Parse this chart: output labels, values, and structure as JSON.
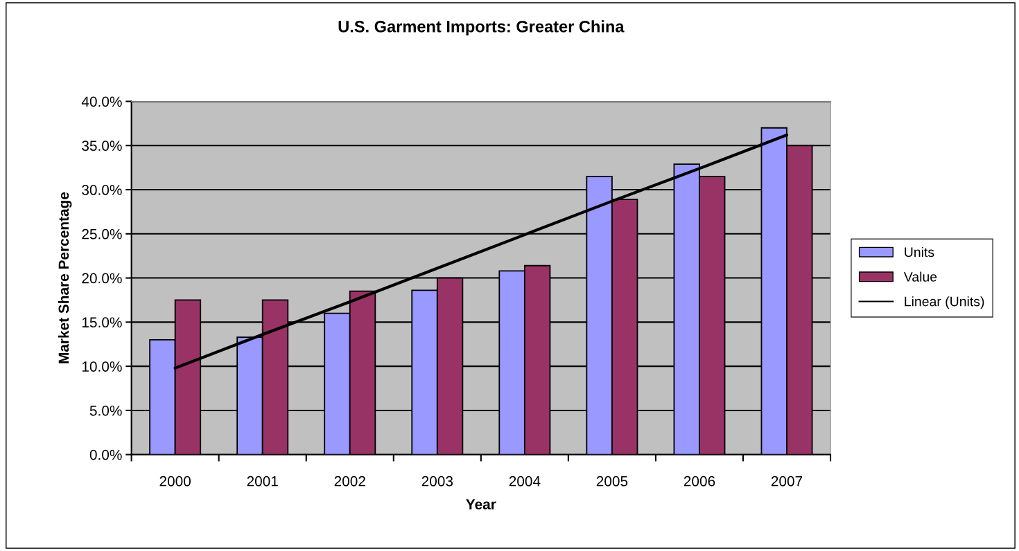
{
  "chart_data": {
    "type": "bar",
    "title": "U.S. Garment Imports: Greater China",
    "xlabel": "Year",
    "ylabel": "Market Share Percentage",
    "categories": [
      "2000",
      "2001",
      "2002",
      "2003",
      "2004",
      "2005",
      "2006",
      "2007"
    ],
    "series": [
      {
        "name": "Units",
        "color": "#9999ff",
        "values": [
          13.0,
          13.3,
          16.0,
          18.6,
          20.8,
          31.5,
          32.9,
          37.0
        ]
      },
      {
        "name": "Value",
        "color": "#993366",
        "values": [
          17.5,
          17.5,
          18.5,
          20.0,
          21.4,
          28.9,
          31.5,
          35.0
        ]
      },
      {
        "name": "Linear (Units)",
        "type": "line",
        "color": "#000000",
        "values": [
          9.8,
          13.6,
          17.3,
          21.1,
          24.9,
          28.7,
          32.4,
          36.2
        ]
      }
    ],
    "ylim": [
      0,
      40
    ],
    "yticks": [
      {
        "value": 0,
        "label": "0.0%"
      },
      {
        "value": 5,
        "label": "5.0%"
      },
      {
        "value": 10,
        "label": "10.0%"
      },
      {
        "value": 15,
        "label": "15.0%"
      },
      {
        "value": 20,
        "label": "20.0%"
      },
      {
        "value": 25,
        "label": "25.0%"
      },
      {
        "value": 30,
        "label": "30.0%"
      },
      {
        "value": 35,
        "label": "35.0%"
      },
      {
        "value": 40,
        "label": "40.0%"
      }
    ],
    "grid": "y",
    "legend": "right"
  }
}
